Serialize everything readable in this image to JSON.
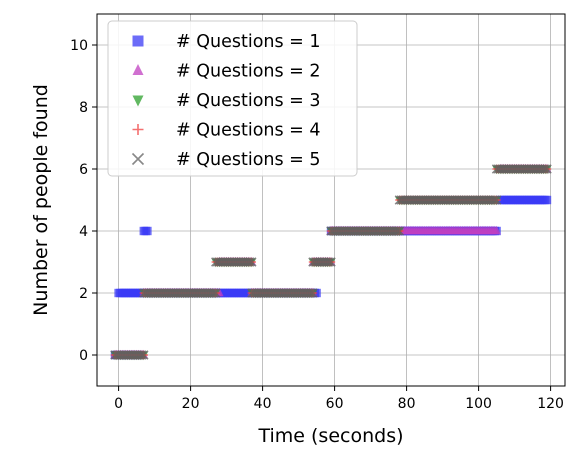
{
  "chart_data": {
    "type": "scatter",
    "title": "",
    "xlabel": "Time (seconds)",
    "ylabel": "Number of people found",
    "xlim": [
      -6,
      124
    ],
    "ylim": [
      -1,
      11
    ],
    "xticks": [
      0,
      20,
      40,
      60,
      80,
      100,
      120
    ],
    "yticks": [
      0,
      2,
      4,
      6,
      8,
      10
    ],
    "grid": true,
    "legend_position": "top-left",
    "series": [
      {
        "name": "# Questions = 1",
        "marker": "square",
        "color": "#3b3bf5",
        "segments": [
          [
            -1,
            6,
            0
          ],
          [
            0,
            7,
            2
          ],
          [
            7,
            8,
            4
          ],
          [
            8,
            55,
            2
          ],
          [
            59,
            105,
            4
          ],
          [
            106,
            119,
            5
          ]
        ]
      },
      {
        "name": "# Questions = 2",
        "marker": "triangle-up",
        "color": "#c040c0",
        "segments": [
          [
            -1,
            7,
            0
          ],
          [
            7,
            28,
            2
          ],
          [
            28,
            37,
            3
          ],
          [
            37,
            54,
            2
          ],
          [
            54,
            59,
            3
          ],
          [
            59,
            105,
            4
          ],
          [
            106,
            119,
            6
          ]
        ]
      },
      {
        "name": "# Questions = 3",
        "marker": "triangle-down",
        "color": "#2ca02c",
        "segments": [
          [
            -1,
            7,
            0
          ],
          [
            7,
            27,
            2
          ],
          [
            27,
            37,
            3
          ],
          [
            37,
            54,
            2
          ],
          [
            54,
            59,
            3
          ],
          [
            59,
            78,
            4
          ],
          [
            78,
            105,
            5
          ],
          [
            105,
            119,
            6
          ]
        ]
      },
      {
        "name": "# Questions = 4",
        "marker": "plus",
        "color": "#f04040",
        "segments": [
          [
            -1,
            7,
            0
          ],
          [
            7,
            27,
            2
          ],
          [
            27,
            37,
            3
          ],
          [
            37,
            54,
            2
          ],
          [
            54,
            59,
            3
          ],
          [
            59,
            78,
            4
          ],
          [
            78,
            105,
            5
          ],
          [
            105,
            119,
            6
          ]
        ]
      },
      {
        "name": "# Questions = 5",
        "marker": "x",
        "color": "#606060",
        "segments": [
          [
            -1,
            7,
            0
          ],
          [
            7,
            27,
            2
          ],
          [
            27,
            37,
            3
          ],
          [
            37,
            54,
            2
          ],
          [
            54,
            59,
            3
          ],
          [
            59,
            78,
            4
          ],
          [
            78,
            105,
            5
          ],
          [
            105,
            119,
            6
          ]
        ]
      }
    ]
  }
}
